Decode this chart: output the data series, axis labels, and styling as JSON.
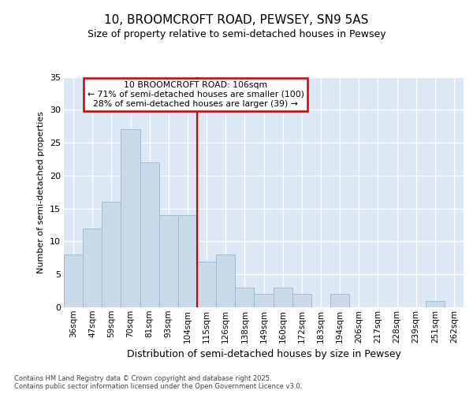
{
  "title1": "10, BROOMCROFT ROAD, PEWSEY, SN9 5AS",
  "title2": "Size of property relative to semi-detached houses in Pewsey",
  "xlabel": "Distribution of semi-detached houses by size in Pewsey",
  "ylabel": "Number of semi-detached properties",
  "categories": [
    "36sqm",
    "47sqm",
    "59sqm",
    "70sqm",
    "81sqm",
    "93sqm",
    "104sqm",
    "115sqm",
    "126sqm",
    "138sqm",
    "149sqm",
    "160sqm",
    "172sqm",
    "183sqm",
    "194sqm",
    "206sqm",
    "217sqm",
    "228sqm",
    "239sqm",
    "251sqm",
    "262sqm"
  ],
  "values": [
    8,
    12,
    16,
    27,
    22,
    14,
    14,
    7,
    8,
    3,
    2,
    3,
    2,
    0,
    2,
    0,
    0,
    0,
    0,
    1,
    0
  ],
  "bar_color": "#c8d9ea",
  "bar_edge_color": "#9bbdd4",
  "highlight_line_color": "#cc0000",
  "annotation_title": "10 BROOMCROFT ROAD: 106sqm",
  "annotation_line1": "← 71% of semi-detached houses are smaller (100)",
  "annotation_line2": "28% of semi-detached houses are larger (39) →",
  "annotation_box_color": "#cc0000",
  "ylim": [
    0,
    35
  ],
  "yticks": [
    0,
    5,
    10,
    15,
    20,
    25,
    30,
    35
  ],
  "footer1": "Contains HM Land Registry data © Crown copyright and database right 2025.",
  "footer2": "Contains public sector information licensed under the Open Government Licence v3.0.",
  "bg_color": "#ffffff",
  "plot_bg_color": "#dce8f5"
}
